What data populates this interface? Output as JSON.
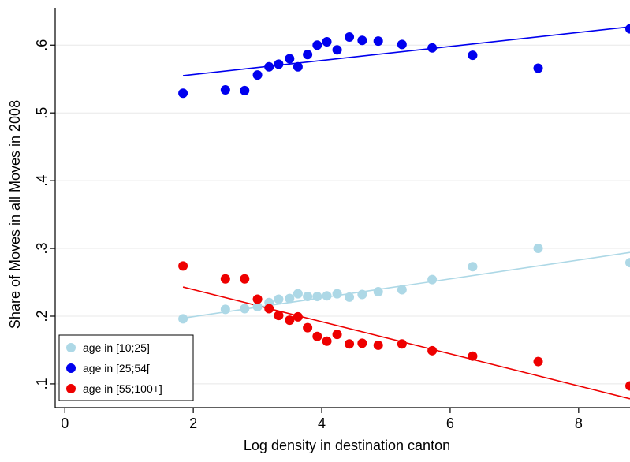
{
  "chart_data": {
    "type": "scatter",
    "xlabel": "Log density in destination canton",
    "ylabel": "Share of Moves in all Moves in 2008",
    "xlim": [
      -0.15,
      8.8
    ],
    "ylim": [
      0.065,
      0.655
    ],
    "xticks": [
      0,
      2,
      4,
      6,
      8
    ],
    "xtick_labels": [
      "0",
      "2",
      "4",
      "6",
      "8"
    ],
    "yticks": [
      0.1,
      0.2,
      0.3,
      0.4,
      0.5,
      0.6
    ],
    "ytick_labels": [
      ".1",
      ".2",
      ".3",
      ".4",
      ".5",
      ".6"
    ],
    "grid": "horizontal",
    "legend_position": "bottom-left",
    "series": [
      {
        "name": "age in [10;25]",
        "color": "#add8e6",
        "x": [
          1.84,
          2.5,
          2.8,
          3.0,
          3.18,
          3.33,
          3.5,
          3.63,
          3.78,
          3.93,
          4.08,
          4.24,
          4.43,
          4.63,
          4.88,
          5.25,
          5.72,
          6.35,
          7.37,
          8.8
        ],
        "y": [
          0.196,
          0.21,
          0.211,
          0.214,
          0.22,
          0.225,
          0.226,
          0.233,
          0.229,
          0.229,
          0.23,
          0.233,
          0.228,
          0.232,
          0.236,
          0.239,
          0.254,
          0.273,
          0.3,
          0.279
        ],
        "fit": [
          [
            1.84,
            0.197
          ],
          [
            8.8,
            0.294
          ]
        ]
      },
      {
        "name": "age in [25;54[",
        "color": "#0000ee",
        "x": [
          1.84,
          2.5,
          2.8,
          3.0,
          3.18,
          3.33,
          3.5,
          3.63,
          3.78,
          3.93,
          4.08,
          4.24,
          4.43,
          4.63,
          4.88,
          5.25,
          5.72,
          6.35,
          7.37,
          8.8
        ],
        "y": [
          0.529,
          0.534,
          0.533,
          0.556,
          0.568,
          0.572,
          0.58,
          0.568,
          0.586,
          0.6,
          0.605,
          0.593,
          0.612,
          0.607,
          0.606,
          0.601,
          0.596,
          0.585,
          0.566,
          0.624
        ],
        "fit": [
          [
            1.84,
            0.555
          ],
          [
            8.8,
            0.627
          ]
        ]
      },
      {
        "name": "age in [55;100+]",
        "color": "#ee0000",
        "x": [
          1.84,
          2.5,
          2.8,
          3.0,
          3.18,
          3.33,
          3.5,
          3.63,
          3.78,
          3.93,
          4.08,
          4.24,
          4.43,
          4.63,
          4.88,
          5.25,
          5.72,
          6.35,
          7.37,
          8.8
        ],
        "y": [
          0.274,
          0.255,
          0.255,
          0.225,
          0.211,
          0.201,
          0.194,
          0.199,
          0.183,
          0.17,
          0.163,
          0.173,
          0.159,
          0.16,
          0.157,
          0.159,
          0.149,
          0.141,
          0.133,
          0.097
        ],
        "fit": [
          [
            1.84,
            0.243
          ],
          [
            8.8,
            0.078
          ]
        ]
      }
    ]
  }
}
